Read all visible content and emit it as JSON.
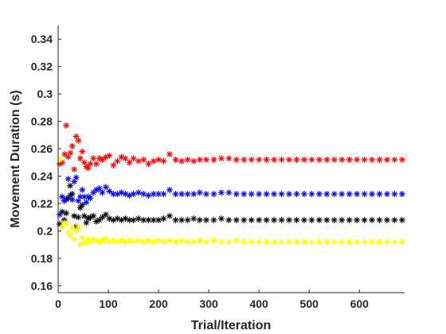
{
  "chart_data": {
    "type": "scatter",
    "marker": "asterisk",
    "title": "",
    "xlabel": "Trial/Iteration",
    "ylabel": "Movement Duration (s)",
    "xlim": [
      0,
      690
    ],
    "ylim": [
      0.155,
      0.35
    ],
    "xticks": [
      0,
      100,
      200,
      300,
      400,
      500,
      600
    ],
    "yticks": [
      0.16,
      0.18,
      0.2,
      0.22,
      0.24,
      0.26,
      0.28,
      0.3,
      0.32,
      0.34
    ],
    "ytick_labels": [
      "0.16",
      "0.18",
      "0.2",
      "0.22",
      "0.24",
      "0.26",
      "0.28",
      "0.3",
      "0.32",
      "0.34"
    ],
    "xtick_labels": [
      "0",
      "100",
      "200",
      "300",
      "400",
      "500",
      "600"
    ],
    "grid": false,
    "legend": "none",
    "series": [
      {
        "color": "#ff0000",
        "points": [
          [
            3,
            0.249
          ],
          [
            8,
            0.25
          ],
          [
            13,
            0.256
          ],
          [
            16,
            0.277
          ],
          [
            20,
            0.254
          ],
          [
            24,
            0.257
          ],
          [
            28,
            0.262
          ],
          [
            32,
            0.245
          ],
          [
            36,
            0.269
          ],
          [
            40,
            0.266
          ],
          [
            44,
            0.253
          ],
          [
            48,
            0.258
          ],
          [
            52,
            0.25
          ],
          [
            56,
            0.247
          ],
          [
            60,
            0.246
          ],
          [
            64,
            0.249
          ],
          [
            70,
            0.253
          ],
          [
            76,
            0.249
          ],
          [
            82,
            0.253
          ],
          [
            88,
            0.252
          ],
          [
            95,
            0.254
          ],
          [
            102,
            0.255
          ],
          [
            110,
            0.248
          ],
          [
            118,
            0.251
          ],
          [
            126,
            0.254
          ],
          [
            134,
            0.253
          ],
          [
            142,
            0.25
          ],
          [
            150,
            0.253
          ],
          [
            160,
            0.251
          ],
          [
            170,
            0.252
          ],
          [
            180,
            0.249
          ],
          [
            190,
            0.251
          ],
          [
            200,
            0.252
          ],
          [
            210,
            0.251
          ],
          [
            222,
            0.256
          ],
          [
            234,
            0.252
          ],
          [
            246,
            0.251
          ],
          [
            258,
            0.252
          ],
          [
            270,
            0.251
          ],
          [
            282,
            0.252
          ],
          [
            295,
            0.252
          ],
          [
            310,
            0.252
          ],
          [
            325,
            0.253
          ],
          [
            340,
            0.253
          ],
          [
            355,
            0.252
          ],
          [
            370,
            0.252
          ],
          [
            385,
            0.252
          ],
          [
            400,
            0.252
          ],
          [
            415,
            0.252
          ],
          [
            430,
            0.252
          ],
          [
            445,
            0.252
          ],
          [
            460,
            0.252
          ],
          [
            475,
            0.252
          ],
          [
            490,
            0.252
          ],
          [
            505,
            0.252
          ],
          [
            520,
            0.252
          ],
          [
            535,
            0.252
          ],
          [
            550,
            0.252
          ],
          [
            565,
            0.252
          ],
          [
            580,
            0.252
          ],
          [
            595,
            0.252
          ],
          [
            610,
            0.252
          ],
          [
            625,
            0.252
          ],
          [
            640,
            0.252
          ],
          [
            655,
            0.252
          ],
          [
            670,
            0.252
          ],
          [
            685,
            0.252
          ]
        ]
      },
      {
        "color": "#0000ff",
        "points": [
          [
            3,
            0.212
          ],
          [
            8,
            0.225
          ],
          [
            12,
            0.222
          ],
          [
            16,
            0.223
          ],
          [
            20,
            0.238
          ],
          [
            24,
            0.226
          ],
          [
            28,
            0.223
          ],
          [
            32,
            0.236
          ],
          [
            36,
            0.239
          ],
          [
            40,
            0.222
          ],
          [
            44,
            0.225
          ],
          [
            48,
            0.23
          ],
          [
            52,
            0.225
          ],
          [
            56,
            0.221
          ],
          [
            60,
            0.225
          ],
          [
            64,
            0.224
          ],
          [
            70,
            0.228
          ],
          [
            76,
            0.23
          ],
          [
            82,
            0.231
          ],
          [
            88,
            0.228
          ],
          [
            95,
            0.232
          ],
          [
            102,
            0.229
          ],
          [
            110,
            0.227
          ],
          [
            118,
            0.227
          ],
          [
            126,
            0.228
          ],
          [
            134,
            0.227
          ],
          [
            142,
            0.226
          ],
          [
            150,
            0.227
          ],
          [
            160,
            0.228
          ],
          [
            170,
            0.227
          ],
          [
            180,
            0.226
          ],
          [
            190,
            0.227
          ],
          [
            200,
            0.227
          ],
          [
            210,
            0.227
          ],
          [
            222,
            0.23
          ],
          [
            234,
            0.227
          ],
          [
            246,
            0.227
          ],
          [
            258,
            0.227
          ],
          [
            270,
            0.227
          ],
          [
            282,
            0.228
          ],
          [
            295,
            0.227
          ],
          [
            310,
            0.227
          ],
          [
            325,
            0.228
          ],
          [
            340,
            0.228
          ],
          [
            355,
            0.227
          ],
          [
            370,
            0.227
          ],
          [
            385,
            0.227
          ],
          [
            400,
            0.227
          ],
          [
            415,
            0.227
          ],
          [
            430,
            0.227
          ],
          [
            445,
            0.227
          ],
          [
            460,
            0.227
          ],
          [
            475,
            0.227
          ],
          [
            490,
            0.227
          ],
          [
            505,
            0.227
          ],
          [
            520,
            0.227
          ],
          [
            535,
            0.227
          ],
          [
            550,
            0.227
          ],
          [
            565,
            0.227
          ],
          [
            580,
            0.227
          ],
          [
            595,
            0.227
          ],
          [
            610,
            0.227
          ],
          [
            625,
            0.227
          ],
          [
            640,
            0.227
          ],
          [
            655,
            0.227
          ],
          [
            670,
            0.227
          ],
          [
            685,
            0.227
          ]
        ]
      },
      {
        "color": "#000000",
        "points": [
          [
            3,
            0.205
          ],
          [
            8,
            0.214
          ],
          [
            12,
            0.208
          ],
          [
            16,
            0.213
          ],
          [
            20,
            0.224
          ],
          [
            24,
            0.233
          ],
          [
            28,
            0.227
          ],
          [
            32,
            0.211
          ],
          [
            36,
            0.203
          ],
          [
            40,
            0.21
          ],
          [
            44,
            0.217
          ],
          [
            48,
            0.219
          ],
          [
            52,
            0.211
          ],
          [
            56,
            0.206
          ],
          [
            60,
            0.209
          ],
          [
            64,
            0.21
          ],
          [
            70,
            0.211
          ],
          [
            76,
            0.207
          ],
          [
            82,
            0.208
          ],
          [
            88,
            0.21
          ],
          [
            95,
            0.212
          ],
          [
            102,
            0.209
          ],
          [
            110,
            0.208
          ],
          [
            118,
            0.209
          ],
          [
            126,
            0.208
          ],
          [
            134,
            0.209
          ],
          [
            142,
            0.208
          ],
          [
            150,
            0.208
          ],
          [
            160,
            0.209
          ],
          [
            170,
            0.208
          ],
          [
            180,
            0.208
          ],
          [
            190,
            0.208
          ],
          [
            200,
            0.208
          ],
          [
            210,
            0.209
          ],
          [
            222,
            0.211
          ],
          [
            234,
            0.208
          ],
          [
            246,
            0.208
          ],
          [
            258,
            0.208
          ],
          [
            270,
            0.209
          ],
          [
            282,
            0.208
          ],
          [
            295,
            0.208
          ],
          [
            310,
            0.208
          ],
          [
            325,
            0.209
          ],
          [
            340,
            0.208
          ],
          [
            355,
            0.208
          ],
          [
            370,
            0.208
          ],
          [
            385,
            0.208
          ],
          [
            400,
            0.208
          ],
          [
            415,
            0.208
          ],
          [
            430,
            0.208
          ],
          [
            445,
            0.208
          ],
          [
            460,
            0.208
          ],
          [
            475,
            0.208
          ],
          [
            490,
            0.208
          ],
          [
            505,
            0.208
          ],
          [
            520,
            0.208
          ],
          [
            535,
            0.208
          ],
          [
            550,
            0.208
          ],
          [
            565,
            0.208
          ],
          [
            580,
            0.208
          ],
          [
            595,
            0.208
          ],
          [
            610,
            0.208
          ],
          [
            625,
            0.208
          ],
          [
            640,
            0.208
          ],
          [
            655,
            0.208
          ],
          [
            670,
            0.208
          ],
          [
            685,
            0.208
          ]
        ]
      },
      {
        "color": "#ffff00",
        "points": [
          [
            3,
            0.252
          ],
          [
            8,
            0.203
          ],
          [
            12,
            0.206
          ],
          [
            16,
            0.205
          ],
          [
            20,
            0.199
          ],
          [
            24,
            0.197
          ],
          [
            28,
            0.202
          ],
          [
            32,
            0.194
          ],
          [
            36,
            0.2
          ],
          [
            40,
            0.203
          ],
          [
            44,
            0.19
          ],
          [
            48,
            0.195
          ],
          [
            52,
            0.191
          ],
          [
            56,
            0.192
          ],
          [
            60,
            0.194
          ],
          [
            64,
            0.192
          ],
          [
            70,
            0.194
          ],
          [
            76,
            0.193
          ],
          [
            82,
            0.192
          ],
          [
            88,
            0.193
          ],
          [
            95,
            0.194
          ],
          [
            102,
            0.192
          ],
          [
            110,
            0.193
          ],
          [
            118,
            0.192
          ],
          [
            126,
            0.193
          ],
          [
            134,
            0.192
          ],
          [
            142,
            0.193
          ],
          [
            150,
            0.192
          ],
          [
            160,
            0.193
          ],
          [
            170,
            0.192
          ],
          [
            180,
            0.193
          ],
          [
            190,
            0.192
          ],
          [
            200,
            0.193
          ],
          [
            210,
            0.192
          ],
          [
            222,
            0.193
          ],
          [
            234,
            0.192
          ],
          [
            246,
            0.193
          ],
          [
            258,
            0.192
          ],
          [
            270,
            0.192
          ],
          [
            282,
            0.193
          ],
          [
            295,
            0.192
          ],
          [
            310,
            0.193
          ],
          [
            325,
            0.192
          ],
          [
            340,
            0.192
          ],
          [
            355,
            0.193
          ],
          [
            370,
            0.192
          ],
          [
            385,
            0.192
          ],
          [
            400,
            0.192
          ],
          [
            415,
            0.192
          ],
          [
            430,
            0.192
          ],
          [
            445,
            0.192
          ],
          [
            460,
            0.192
          ],
          [
            475,
            0.192
          ],
          [
            490,
            0.192
          ],
          [
            505,
            0.192
          ],
          [
            520,
            0.192
          ],
          [
            535,
            0.192
          ],
          [
            550,
            0.192
          ],
          [
            565,
            0.192
          ],
          [
            580,
            0.192
          ],
          [
            595,
            0.192
          ],
          [
            610,
            0.192
          ],
          [
            625,
            0.192
          ],
          [
            640,
            0.192
          ],
          [
            655,
            0.192
          ],
          [
            670,
            0.192
          ],
          [
            685,
            0.192
          ]
        ]
      }
    ]
  }
}
